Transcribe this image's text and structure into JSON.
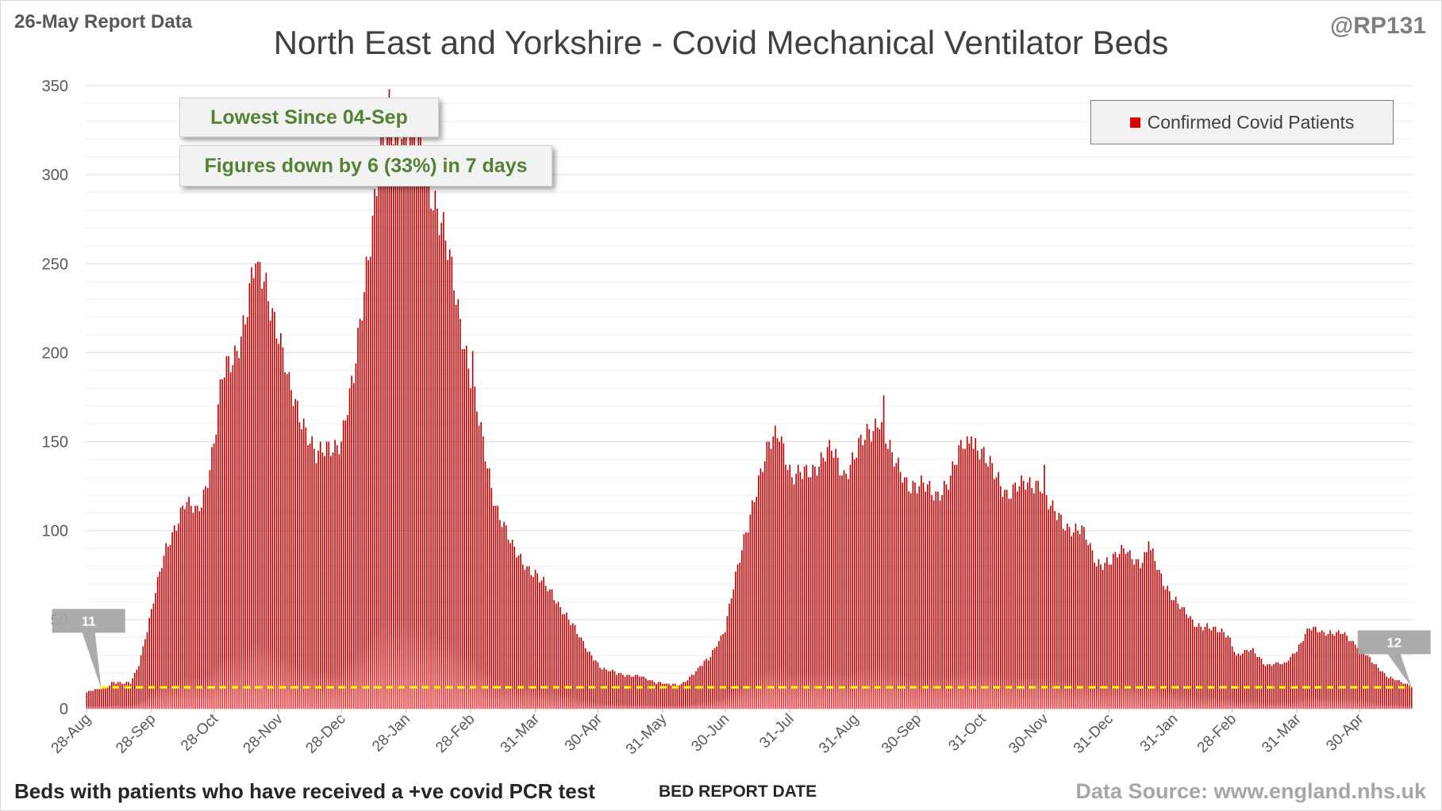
{
  "header": {
    "report_date": "26-May Report Data",
    "handle": "@RP131",
    "title": "North East and Yorkshire - Covid Mechanical Ventilator Beds"
  },
  "footer": {
    "note": "Beds with patients who have received a +ve covid PCR test",
    "source": "Data Source: www.england.nhs.uk"
  },
  "callouts": {
    "lowest": "Lowest Since 04-Sep",
    "change": "Figures down by 6 (33%) in 7 days"
  },
  "colors": {
    "bar": "#c00000",
    "bar_light": "#ff3b3b",
    "reference_line": "#ffff00",
    "marker": "#a6a6a6"
  },
  "chart_data": {
    "type": "bar",
    "title": "North East and Yorkshire - Covid Mechanical Ventilator Beds",
    "xlabel": "BED REPORT DATE",
    "ylabel": "",
    "ylim": [
      0,
      350
    ],
    "yticks": [
      0,
      50,
      100,
      150,
      200,
      250,
      300,
      350
    ],
    "grid": true,
    "legend_position": "top-right",
    "series": [
      {
        "name": "Confirmed Covid Patients",
        "color": "#c00000"
      }
    ],
    "x_start": "2020-08-28",
    "x_end": "2022-05-25",
    "x_tick_labels": [
      "28-Aug",
      "28-Sep",
      "28-Oct",
      "28-Nov",
      "28-Dec",
      "28-Jan",
      "28-Feb",
      "31-Mar",
      "30-Apr",
      "31-May",
      "30-Jun",
      "31-Jul",
      "31-Aug",
      "30-Sep",
      "31-Oct",
      "30-Nov",
      "31-Dec",
      "31-Jan",
      "28-Feb",
      "31-Mar",
      "30-Apr"
    ],
    "x_tick_dates": [
      "2020-08-28",
      "2020-09-28",
      "2020-10-28",
      "2020-11-28",
      "2020-12-28",
      "2021-01-28",
      "2021-02-28",
      "2021-03-31",
      "2021-04-30",
      "2021-05-31",
      "2021-06-30",
      "2021-07-31",
      "2021-08-31",
      "2021-09-30",
      "2021-10-31",
      "2021-11-30",
      "2021-12-31",
      "2022-01-31",
      "2022-02-28",
      "2022-03-31",
      "2022-04-30"
    ],
    "anchors": [
      [
        "2020-08-28",
        9
      ],
      [
        "2020-09-04",
        11
      ],
      [
        "2020-09-10",
        15
      ],
      [
        "2020-09-18",
        14
      ],
      [
        "2020-09-22",
        25
      ],
      [
        "2020-09-28",
        55
      ],
      [
        "2020-10-05",
        90
      ],
      [
        "2020-10-10",
        105
      ],
      [
        "2020-10-14",
        115
      ],
      [
        "2020-10-20",
        110
      ],
      [
        "2020-10-24",
        125
      ],
      [
        "2020-10-28",
        150
      ],
      [
        "2020-11-01",
        185
      ],
      [
        "2020-11-07",
        200
      ],
      [
        "2020-11-12",
        220
      ],
      [
        "2020-11-17",
        250
      ],
      [
        "2020-11-22",
        240
      ],
      [
        "2020-11-27",
        215
      ],
      [
        "2020-12-03",
        180
      ],
      [
        "2020-12-09",
        165
      ],
      [
        "2020-12-16",
        140
      ],
      [
        "2020-12-22",
        148
      ],
      [
        "2020-12-28",
        150
      ],
      [
        "2021-01-03",
        185
      ],
      [
        "2021-01-09",
        250
      ],
      [
        "2021-01-15",
        300
      ],
      [
        "2021-01-20",
        335
      ],
      [
        "2021-01-27",
        325
      ],
      [
        "2021-02-02",
        320
      ],
      [
        "2021-02-08",
        300
      ],
      [
        "2021-02-14",
        270
      ],
      [
        "2021-02-20",
        240
      ],
      [
        "2021-02-26",
        200
      ],
      [
        "2021-03-04",
        160
      ],
      [
        "2021-03-12",
        115
      ],
      [
        "2021-03-20",
        90
      ],
      [
        "2021-03-31",
        75
      ],
      [
        "2021-04-08",
        65
      ],
      [
        "2021-04-16",
        50
      ],
      [
        "2021-04-24",
        35
      ],
      [
        "2021-05-02",
        22
      ],
      [
        "2021-05-10",
        20
      ],
      [
        "2021-05-20",
        18
      ],
      [
        "2021-05-31",
        14
      ],
      [
        "2021-06-08",
        13
      ],
      [
        "2021-06-15",
        20
      ],
      [
        "2021-06-22",
        28
      ],
      [
        "2021-06-30",
        45
      ],
      [
        "2021-07-08",
        90
      ],
      [
        "2021-07-14",
        120
      ],
      [
        "2021-07-22",
        150
      ],
      [
        "2021-07-26",
        158
      ],
      [
        "2021-08-01",
        128
      ],
      [
        "2021-08-10",
        135
      ],
      [
        "2021-08-20",
        145
      ],
      [
        "2021-08-26",
        132
      ],
      [
        "2021-09-03",
        148
      ],
      [
        "2021-09-09",
        158
      ],
      [
        "2021-09-12",
        165
      ],
      [
        "2021-09-18",
        140
      ],
      [
        "2021-09-25",
        128
      ],
      [
        "2021-10-02",
        125
      ],
      [
        "2021-10-09",
        120
      ],
      [
        "2021-10-16",
        130
      ],
      [
        "2021-10-22",
        148
      ],
      [
        "2021-10-28",
        150
      ],
      [
        "2021-11-04",
        135
      ],
      [
        "2021-11-12",
        122
      ],
      [
        "2021-11-20",
        125
      ],
      [
        "2021-11-28",
        128
      ],
      [
        "2021-12-03",
        112
      ],
      [
        "2021-12-10",
        103
      ],
      [
        "2021-12-18",
        100
      ],
      [
        "2021-12-25",
        82
      ],
      [
        "2022-01-01",
        83
      ],
      [
        "2022-01-08",
        90
      ],
      [
        "2022-01-15",
        82
      ],
      [
        "2022-01-20",
        88
      ],
      [
        "2022-01-26",
        72
      ],
      [
        "2022-02-02",
        58
      ],
      [
        "2022-02-10",
        48
      ],
      [
        "2022-02-18",
        45
      ],
      [
        "2022-02-26",
        42
      ],
      [
        "2022-03-02",
        30
      ],
      [
        "2022-03-10",
        33
      ],
      [
        "2022-03-16",
        25
      ],
      [
        "2022-03-25",
        25
      ],
      [
        "2022-04-01",
        35
      ],
      [
        "2022-04-06",
        45
      ],
      [
        "2022-04-14",
        43
      ],
      [
        "2022-04-22",
        42
      ],
      [
        "2022-04-30",
        35
      ],
      [
        "2022-05-07",
        25
      ],
      [
        "2022-05-14",
        18
      ],
      [
        "2022-05-20",
        15
      ],
      [
        "2022-05-25",
        12
      ]
    ],
    "spikes": [
      [
        "2020-11-18",
        251
      ],
      [
        "2021-01-21",
        340
      ],
      [
        "2021-01-26",
        320
      ],
      [
        "2021-02-01",
        323
      ],
      [
        "2021-03-01",
        201
      ],
      [
        "2021-09-14",
        176
      ],
      [
        "2021-10-26",
        153
      ],
      [
        "2021-11-30",
        137
      ],
      [
        "2022-01-19",
        94
      ]
    ],
    "reference_line": {
      "value": 12
    },
    "markers": [
      {
        "label": "11",
        "date": "2020-09-04",
        "value": 11
      },
      {
        "label": "12",
        "date": "2022-05-25",
        "value": 12
      }
    ]
  }
}
